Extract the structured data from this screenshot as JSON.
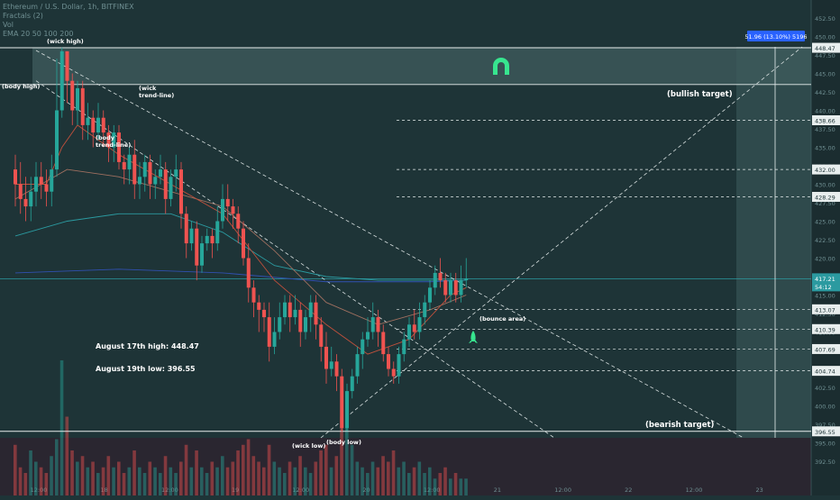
{
  "header": {
    "symbol_line": "Ethereum / U.S. Dollar, 1h, BITFINEX",
    "indicator_1": "Fractals (2)",
    "indicator_2": "Vol",
    "indicator_3": "EMA 20 50 100 200"
  },
  "chart_data": {
    "type": "candlestick",
    "title": "",
    "xlabel": "",
    "ylabel": "",
    "ylim": [
      391,
      452
    ],
    "x_ticks": [
      "12:00",
      "18",
      "12:00",
      "19",
      "12:00",
      "20",
      "12:00",
      "21",
      "12:00",
      "22",
      "12:00",
      "23"
    ],
    "y_ticks": [
      392.5,
      395.0,
      397.5,
      400.0,
      402.5,
      405.0,
      407.5,
      410.0,
      412.5,
      415.0,
      417.5,
      420.0,
      422.5,
      425.0,
      427.5,
      430.0,
      432.5,
      435.0,
      437.5,
      440.0,
      442.5,
      445.0,
      447.5,
      450.0,
      452.5
    ],
    "y_tick_labels": [
      "392.50",
      "395.00",
      "397.50",
      "400.00",
      "402.50",
      "405.00",
      "407.50",
      "410.00",
      "412.50",
      "415.00",
      "417.50",
      "420.00",
      "422.50",
      "425.00",
      "427.50",
      "430.00",
      "432.50",
      "435.00",
      "437.50",
      "440.00",
      "442.50",
      "445.00",
      "447.50",
      "450.00",
      "452.50"
    ],
    "price_levels": [
      {
        "value": 448.47,
        "label": "448.47"
      },
      {
        "value": 438.66,
        "label": "438.66"
      },
      {
        "value": 432.0,
        "label": "432.00"
      },
      {
        "value": 428.29,
        "label": "428.29"
      },
      {
        "value": 413.07,
        "label": "413.07"
      },
      {
        "value": 410.39,
        "label": "410.39"
      },
      {
        "value": 407.69,
        "label": "407.69"
      },
      {
        "value": 404.74,
        "label": "404.74"
      },
      {
        "value": 396.55,
        "label": "396.55"
      }
    ],
    "current_price": {
      "value": 417.21,
      "label": "417.21",
      "countdown": "54:12"
    },
    "measure_label": "51.96 (13.10%) 5196",
    "bullish_zone": [
      443.5,
      448.47
    ],
    "candles": [
      [
        432,
        430,
        434,
        427
      ],
      [
        430,
        428,
        433,
        426
      ],
      [
        428,
        427,
        431,
        425
      ],
      [
        427,
        429,
        431,
        425
      ],
      [
        429,
        431,
        433,
        427
      ],
      [
        431,
        430,
        433,
        428
      ],
      [
        430,
        429,
        432,
        427
      ],
      [
        429,
        432,
        434,
        427
      ],
      [
        432,
        440,
        447,
        431
      ],
      [
        440,
        448,
        448.5,
        439
      ],
      [
        448,
        444,
        448,
        441
      ],
      [
        444,
        440,
        445,
        438
      ],
      [
        440,
        443,
        444,
        438
      ],
      [
        443,
        438,
        444,
        436
      ],
      [
        438,
        439,
        441,
        436
      ],
      [
        439,
        437,
        440,
        435
      ],
      [
        437,
        439,
        441,
        436
      ],
      [
        439,
        437,
        440,
        435
      ],
      [
        437,
        435,
        438,
        433
      ],
      [
        435,
        437,
        438,
        433
      ],
      [
        437,
        433,
        438,
        432
      ],
      [
        433,
        432,
        434,
        430
      ],
      [
        432,
        434,
        435,
        430
      ],
      [
        434,
        430,
        436,
        428
      ],
      [
        430,
        431,
        433,
        428
      ],
      [
        431,
        433,
        434,
        429
      ],
      [
        433,
        430,
        434,
        428
      ],
      [
        430,
        431,
        432,
        428
      ],
      [
        431,
        432,
        434,
        430
      ],
      [
        432,
        428,
        433,
        426
      ],
      [
        428,
        431,
        432,
        427
      ],
      [
        431,
        432,
        434,
        429
      ],
      [
        432,
        426,
        433,
        424
      ],
      [
        426,
        422,
        427,
        420
      ],
      [
        422,
        424,
        425,
        421
      ],
      [
        424,
        419,
        425,
        417
      ],
      [
        419,
        422,
        423,
        418
      ],
      [
        422,
        423,
        424,
        421
      ],
      [
        423,
        422,
        424,
        420
      ],
      [
        422,
        425,
        427,
        421
      ],
      [
        425,
        428,
        430,
        424
      ],
      [
        428,
        427,
        430,
        425
      ],
      [
        427,
        426,
        428,
        424
      ],
      [
        426,
        424,
        427,
        422
      ],
      [
        424,
        420,
        425,
        419
      ],
      [
        420,
        416,
        422,
        414
      ],
      [
        416,
        414,
        417,
        412
      ],
      [
        414,
        413,
        415,
        410
      ],
      [
        413,
        412,
        414,
        410
      ],
      [
        412,
        408,
        414,
        406
      ],
      [
        408,
        410,
        412,
        407
      ],
      [
        410,
        412,
        414,
        409
      ],
      [
        412,
        414,
        415,
        411
      ],
      [
        414,
        412,
        415,
        410
      ],
      [
        412,
        413,
        415,
        411
      ],
      [
        413,
        410,
        414,
        408
      ],
      [
        410,
        412,
        413,
        409
      ],
      [
        412,
        414,
        415,
        410
      ],
      [
        414,
        411,
        415,
        409
      ],
      [
        411,
        408,
        412,
        406
      ],
      [
        408,
        405,
        410,
        403
      ],
      [
        405,
        406,
        408,
        404
      ],
      [
        406,
        404,
        407,
        402
      ],
      [
        404,
        397,
        405,
        396.5
      ],
      [
        397,
        402,
        403,
        396.6
      ],
      [
        402,
        404,
        405,
        401
      ],
      [
        404,
        407,
        408,
        403
      ],
      [
        407,
        409,
        410,
        405
      ],
      [
        409,
        410,
        412,
        408
      ],
      [
        410,
        412,
        414,
        409
      ],
      [
        412,
        410,
        413,
        408
      ],
      [
        410,
        407,
        411,
        406
      ],
      [
        407,
        405,
        408,
        404
      ],
      [
        405,
        404,
        406,
        403
      ],
      [
        404,
        407,
        408,
        403
      ],
      [
        407,
        409,
        410,
        406
      ],
      [
        409,
        411,
        412,
        408
      ],
      [
        411,
        410,
        413,
        409
      ],
      [
        410,
        412,
        414,
        409
      ],
      [
        412,
        414,
        415,
        411
      ],
      [
        414,
        416,
        417,
        413
      ],
      [
        416,
        418,
        419,
        415
      ],
      [
        418,
        417,
        420,
        416
      ],
      [
        417,
        415,
        418,
        414
      ],
      [
        415,
        417,
        418,
        414
      ],
      [
        417,
        415,
        418,
        414
      ],
      [
        415,
        417,
        419,
        414
      ],
      [
        417,
        417.2,
        420,
        416
      ]
    ],
    "volume": [
      9,
      5,
      4,
      8,
      6,
      5,
      4,
      7,
      10,
      24,
      14,
      8,
      6,
      7,
      5,
      6,
      4,
      5,
      7,
      5,
      6,
      4,
      5,
      8,
      5,
      4,
      6,
      5,
      4,
      7,
      5,
      4,
      6,
      9,
      5,
      8,
      5,
      4,
      6,
      5,
      7,
      5,
      6,
      8,
      9,
      10,
      7,
      6,
      5,
      9,
      6,
      5,
      4,
      6,
      5,
      7,
      5,
      4,
      6,
      8,
      9,
      5,
      7,
      14,
      18,
      9,
      6,
      5,
      4,
      6,
      5,
      7,
      6,
      8,
      5,
      6,
      4,
      5,
      6,
      4,
      5,
      3,
      4,
      5,
      3,
      4,
      3,
      3
    ],
    "ema_20": [
      [
        0,
        430
      ],
      [
        6,
        430
      ],
      [
        9,
        435
      ],
      [
        12,
        438
      ],
      [
        20,
        434
      ],
      [
        30,
        430
      ],
      [
        40,
        426
      ],
      [
        50,
        417
      ],
      [
        60,
        411
      ],
      [
        68,
        407
      ],
      [
        76,
        409
      ],
      [
        84,
        415
      ],
      [
        87,
        416
      ]
    ],
    "ema_50": [
      [
        0,
        428
      ],
      [
        10,
        432
      ],
      [
        20,
        431
      ],
      [
        30,
        429
      ],
      [
        40,
        427
      ],
      [
        50,
        421
      ],
      [
        60,
        414
      ],
      [
        70,
        411
      ],
      [
        80,
        413
      ],
      [
        87,
        415
      ]
    ],
    "ema_100": [
      [
        0,
        423
      ],
      [
        10,
        425
      ],
      [
        20,
        426
      ],
      [
        30,
        426
      ],
      [
        40,
        423.5
      ],
      [
        50,
        419
      ],
      [
        60,
        417.5
      ],
      [
        70,
        417
      ],
      [
        80,
        417
      ],
      [
        87,
        417
      ]
    ],
    "ema_200": [
      [
        0,
        418
      ],
      [
        20,
        418.5
      ],
      [
        40,
        418
      ],
      [
        60,
        416.8
      ],
      [
        80,
        416.8
      ],
      [
        87,
        417
      ]
    ],
    "annotations": {
      "wick_high": "(wick high)",
      "body_high": "(body high)",
      "wick_trendline": "(wick trend-line)",
      "body_trendline": "(body trend-line)",
      "bounce_area": "(bounce area)",
      "wick_low": "(wick low)",
      "body_low": "(body low)",
      "bullish_target": "(bullish target)",
      "bearish_target": "(bearish target)",
      "note_high": "August 17th high: 448.47",
      "note_low": "August 19th low: 396.55"
    },
    "colors": {
      "background": "#1e3437",
      "up": "#26a69a",
      "down": "#ef5350",
      "ema_20": "#c0503c",
      "ema_50": "#a07060",
      "ema_100": "#2b9aa0",
      "ema_200": "#3050b0",
      "magnet": "#37e58f",
      "rocket": "#37e58f"
    }
  }
}
